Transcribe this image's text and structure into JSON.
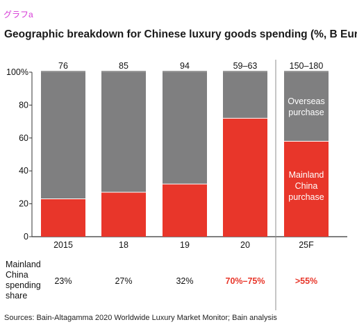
{
  "tag": "グラフa",
  "chart_data": {
    "type": "bar",
    "title": "Geographic breakdown for Chinese luxury goods spending (%, B Euro)",
    "categories": [
      "2015",
      "18",
      "19",
      "20",
      "25F"
    ],
    "totals": [
      "76",
      "85",
      "94",
      "59–63",
      "150–180"
    ],
    "ylim": [
      0,
      100
    ],
    "yticks": [
      "0",
      "20",
      "40",
      "60",
      "80",
      "100%"
    ],
    "series": [
      {
        "name": "Mainland China purchase",
        "values": [
          23,
          27,
          32,
          72,
          58
        ],
        "color": "#e8362a"
      },
      {
        "name": "Overseas purchase",
        "values": [
          77,
          73,
          68,
          28,
          42
        ],
        "color": "#7f7f80"
      }
    ],
    "segment_notes": {
      "overseas": [
        "Overseas",
        "purchase"
      ],
      "mainland": [
        "Mainland",
        "China",
        "purchase"
      ]
    },
    "share_row": {
      "label": [
        "Mainland",
        "China",
        "spending",
        "share"
      ],
      "values": [
        "23%",
        "27%",
        "32%",
        "70%–75%",
        ">55%"
      ],
      "highlight": [
        false,
        false,
        false,
        true,
        true
      ]
    }
  },
  "source": "Sources: Bain-Altagamma 2020 Worldwide Luxury Market Monitor; Bain analysis"
}
